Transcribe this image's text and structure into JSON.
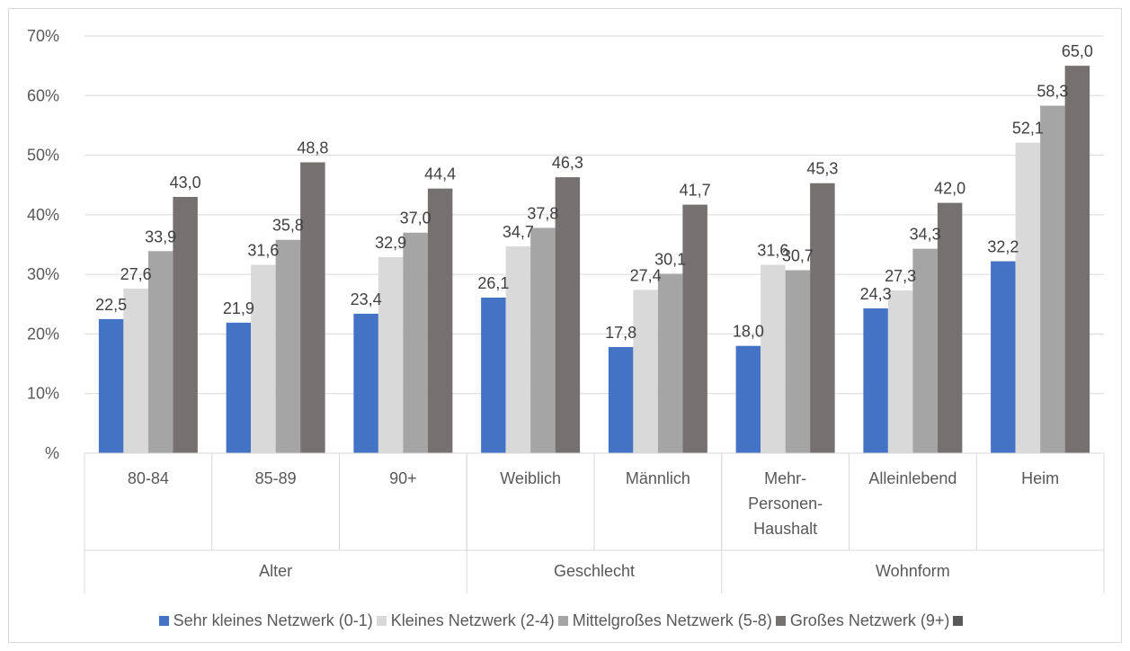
{
  "chart_data": {
    "type": "bar",
    "y_ticks": [
      "%",
      "10%",
      "20%",
      "30%",
      "40%",
      "50%",
      "60%",
      "70%"
    ],
    "ylim": [
      0,
      70
    ],
    "grid": true,
    "categories": [
      "80-84",
      "85-89",
      "90+",
      "Weiblich",
      "Männlich",
      "Mehr-Personen-Haushalt",
      "Alleinlebend",
      "Heim"
    ],
    "category_lines": [
      [
        "80-84"
      ],
      [
        "85-89"
      ],
      [
        "90+"
      ],
      [
        "Weiblich"
      ],
      [
        "Männlich"
      ],
      [
        "Mehr-",
        "Personen-",
        "Haushalt"
      ],
      [
        "Alleinlebend"
      ],
      [
        "Heim"
      ]
    ],
    "groups": [
      {
        "label": "Alter",
        "categories": [
          "80-84",
          "85-89",
          "90+"
        ]
      },
      {
        "label": "Geschlecht",
        "categories": [
          "Weiblich",
          "Männlich"
        ]
      },
      {
        "label": "Wohnform",
        "categories": [
          "Mehr-Personen-Haushalt",
          "Alleinlebend",
          "Heim"
        ]
      }
    ],
    "series": [
      {
        "name": "Sehr kleines Netzwerk (0-1)",
        "color": "#4472c4",
        "values": [
          22.5,
          21.9,
          23.4,
          26.1,
          17.8,
          18.0,
          24.3,
          32.2
        ],
        "labels": [
          "22,5",
          "21,9",
          "23,4",
          "26,1",
          "17,8",
          "18,0",
          "24,3",
          "32,2"
        ]
      },
      {
        "name": "Kleines Netzwerk (2-4)",
        "color": "#d9d9d9",
        "values": [
          27.6,
          31.6,
          32.9,
          34.7,
          27.4,
          31.6,
          27.3,
          52.1
        ],
        "labels": [
          "27,6",
          "31,6",
          "32,9",
          "34,7",
          "27,4",
          "31,6",
          "27,3",
          "52,1"
        ]
      },
      {
        "name": "Mittelgroßes Netzwerk (5-8)",
        "color": "#a5a5a5",
        "values": [
          33.9,
          35.8,
          37.0,
          37.8,
          30.1,
          30.7,
          34.3,
          58.3
        ],
        "labels": [
          "33,9",
          "35,8",
          "37,0",
          "37,8",
          "30,1",
          "30,7",
          "34,3",
          "58,3"
        ]
      },
      {
        "name": "Großes Netzwerk (9+)",
        "color": "#767171",
        "values": [
          43.0,
          48.8,
          44.4,
          46.3,
          41.7,
          45.3,
          42.0,
          65.0
        ],
        "labels": [
          "43,0",
          "48,8",
          "44,4",
          "46,3",
          "41,7",
          "45,3",
          "42,0",
          "65,0"
        ]
      }
    ],
    "legend": {
      "position": "bottom",
      "trailing_swatch_color": "#595959"
    }
  }
}
